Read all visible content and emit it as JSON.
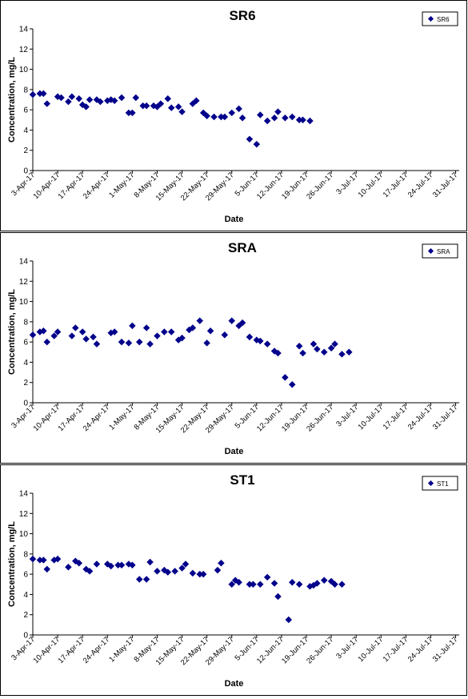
{
  "chart_data": [
    {
      "type": "scatter",
      "title": "SR6",
      "xlabel": "Date",
      "ylabel": "Concentration, mg/L",
      "ylim": [
        0,
        14
      ],
      "yticks": [
        0,
        2,
        4,
        6,
        8,
        10,
        12,
        14
      ],
      "xlim": [
        "2017-04-03",
        "2017-08-01"
      ],
      "xtick_dates": [
        "2017-04-03",
        "2017-04-10",
        "2017-04-17",
        "2017-04-24",
        "2017-05-01",
        "2017-05-08",
        "2017-05-15",
        "2017-05-22",
        "2017-05-29",
        "2017-06-05",
        "2017-06-12",
        "2017-06-19",
        "2017-06-26",
        "2017-07-03",
        "2017-07-10",
        "2017-07-17",
        "2017-07-24",
        "2017-07-31"
      ],
      "xtick_labels": [
        "3-Apr-17",
        "10-Apr-17",
        "17-Apr-17",
        "24-Apr-17",
        "1-May-17",
        "8-May-17",
        "15-May-17",
        "22-May-17",
        "29-May-17",
        "5-Jun-17",
        "12-Jun-17",
        "19-Jun-17",
        "26-Jun-17",
        "3-Jul-17",
        "10-Jul-17",
        "17-Jul-17",
        "24-Jul-17",
        "31-Jul-17"
      ],
      "grid": false,
      "legend": "top-right",
      "color": "#00008B",
      "series": [
        {
          "name": "SR6",
          "points": [
            [
              "2017-04-03",
              7.5
            ],
            [
              "2017-04-05",
              7.6
            ],
            [
              "2017-04-06",
              7.6
            ],
            [
              "2017-04-07",
              6.6
            ],
            [
              "2017-04-10",
              7.3
            ],
            [
              "2017-04-11",
              7.2
            ],
            [
              "2017-04-13",
              6.8
            ],
            [
              "2017-04-14",
              7.3
            ],
            [
              "2017-04-16",
              7.1
            ],
            [
              "2017-04-17",
              6.5
            ],
            [
              "2017-04-18",
              6.3
            ],
            [
              "2017-04-19",
              7.0
            ],
            [
              "2017-04-21",
              7.0
            ],
            [
              "2017-04-22",
              6.8
            ],
            [
              "2017-04-24",
              6.9
            ],
            [
              "2017-04-25",
              7.0
            ],
            [
              "2017-04-26",
              6.9
            ],
            [
              "2017-04-28",
              7.2
            ],
            [
              "2017-04-30",
              5.7
            ],
            [
              "2017-05-01",
              5.7
            ],
            [
              "2017-05-02",
              7.2
            ],
            [
              "2017-05-04",
              6.4
            ],
            [
              "2017-05-05",
              6.4
            ],
            [
              "2017-05-07",
              6.4
            ],
            [
              "2017-05-08",
              6.3
            ],
            [
              "2017-05-09",
              6.6
            ],
            [
              "2017-05-11",
              7.1
            ],
            [
              "2017-05-12",
              6.2
            ],
            [
              "2017-05-14",
              6.3
            ],
            [
              "2017-05-15",
              5.8
            ],
            [
              "2017-05-18",
              6.6
            ],
            [
              "2017-05-19",
              6.9
            ],
            [
              "2017-05-21",
              5.7
            ],
            [
              "2017-05-22",
              5.4
            ],
            [
              "2017-05-24",
              5.3
            ],
            [
              "2017-05-26",
              5.3
            ],
            [
              "2017-05-27",
              5.3
            ],
            [
              "2017-05-29",
              5.7
            ],
            [
              "2017-05-31",
              6.1
            ],
            [
              "2017-06-01",
              5.2
            ],
            [
              "2017-06-03",
              3.1
            ],
            [
              "2017-06-05",
              2.6
            ],
            [
              "2017-06-06",
              5.5
            ],
            [
              "2017-06-08",
              4.9
            ],
            [
              "2017-06-10",
              5.2
            ],
            [
              "2017-06-11",
              5.8
            ],
            [
              "2017-06-13",
              5.2
            ],
            [
              "2017-06-15",
              5.3
            ],
            [
              "2017-06-17",
              5.0
            ],
            [
              "2017-06-18",
              5.0
            ],
            [
              "2017-06-20",
              4.9
            ]
          ]
        }
      ]
    },
    {
      "type": "scatter",
      "title": "SRA",
      "xlabel": "Date",
      "ylabel": "Concentration, mg/L",
      "ylim": [
        0,
        14
      ],
      "yticks": [
        0,
        2,
        4,
        6,
        8,
        10,
        12,
        14
      ],
      "xlim": [
        "2017-04-03",
        "2017-08-01"
      ],
      "xtick_dates": [
        "2017-04-03",
        "2017-04-10",
        "2017-04-17",
        "2017-04-24",
        "2017-05-01",
        "2017-05-08",
        "2017-05-15",
        "2017-05-22",
        "2017-05-29",
        "2017-06-05",
        "2017-06-12",
        "2017-06-19",
        "2017-06-26",
        "2017-07-03",
        "2017-07-10",
        "2017-07-17",
        "2017-07-24",
        "2017-07-31"
      ],
      "xtick_labels": [
        "3-Apr-17",
        "10-Apr-17",
        "17-Apr-17",
        "24-Apr-17",
        "1-May-17",
        "8-May-17",
        "15-May-17",
        "22-May-17",
        "29-May-17",
        "5-Jun-17",
        "12-Jun-17",
        "19-Jun-17",
        "26-Jun-17",
        "3-Jul-17",
        "10-Jul-17",
        "17-Jul-17",
        "24-Jul-17",
        "31-Jul-17"
      ],
      "grid": false,
      "legend": "top-right",
      "color": "#00008B",
      "series": [
        {
          "name": "SRA",
          "points": [
            [
              "2017-04-03",
              6.7
            ],
            [
              "2017-04-05",
              7.0
            ],
            [
              "2017-04-06",
              7.1
            ],
            [
              "2017-04-07",
              6.0
            ],
            [
              "2017-04-09",
              6.6
            ],
            [
              "2017-04-10",
              7.0
            ],
            [
              "2017-04-14",
              6.6
            ],
            [
              "2017-04-15",
              7.4
            ],
            [
              "2017-04-17",
              7.0
            ],
            [
              "2017-04-18",
              6.3
            ],
            [
              "2017-04-20",
              6.5
            ],
            [
              "2017-04-21",
              5.8
            ],
            [
              "2017-04-25",
              6.9
            ],
            [
              "2017-04-26",
              7.0
            ],
            [
              "2017-04-28",
              6.0
            ],
            [
              "2017-04-30",
              5.9
            ],
            [
              "2017-05-01",
              7.6
            ],
            [
              "2017-05-03",
              6.0
            ],
            [
              "2017-05-05",
              7.4
            ],
            [
              "2017-05-06",
              5.8
            ],
            [
              "2017-05-08",
              6.6
            ],
            [
              "2017-05-10",
              7.0
            ],
            [
              "2017-05-12",
              7.0
            ],
            [
              "2017-05-14",
              6.2
            ],
            [
              "2017-05-15",
              6.4
            ],
            [
              "2017-05-17",
              7.2
            ],
            [
              "2017-05-18",
              7.4
            ],
            [
              "2017-05-20",
              8.1
            ],
            [
              "2017-05-22",
              5.9
            ],
            [
              "2017-05-23",
              7.1
            ],
            [
              "2017-05-27",
              6.7
            ],
            [
              "2017-05-29",
              8.1
            ],
            [
              "2017-05-31",
              7.6
            ],
            [
              "2017-06-01",
              7.9
            ],
            [
              "2017-06-03",
              6.5
            ],
            [
              "2017-06-05",
              6.2
            ],
            [
              "2017-06-06",
              6.1
            ],
            [
              "2017-06-08",
              5.8
            ],
            [
              "2017-06-10",
              5.1
            ],
            [
              "2017-06-11",
              4.9
            ],
            [
              "2017-06-13",
              2.5
            ],
            [
              "2017-06-15",
              1.8
            ],
            [
              "2017-06-17",
              5.6
            ],
            [
              "2017-06-18",
              4.9
            ],
            [
              "2017-06-21",
              5.8
            ],
            [
              "2017-06-22",
              5.3
            ],
            [
              "2017-06-24",
              5.0
            ],
            [
              "2017-06-26",
              5.4
            ],
            [
              "2017-06-27",
              5.8
            ],
            [
              "2017-06-29",
              4.8
            ],
            [
              "2017-07-01",
              5.0
            ]
          ]
        }
      ]
    },
    {
      "type": "scatter",
      "title": "ST1",
      "xlabel": "Date",
      "ylabel": "Concentration, mg/L",
      "ylim": [
        0,
        14
      ],
      "yticks": [
        0,
        2,
        4,
        6,
        8,
        10,
        12,
        14
      ],
      "xlim": [
        "2017-04-03",
        "2017-08-01"
      ],
      "xtick_dates": [
        "2017-04-03",
        "2017-04-10",
        "2017-04-17",
        "2017-04-24",
        "2017-05-01",
        "2017-05-08",
        "2017-05-15",
        "2017-05-22",
        "2017-05-29",
        "2017-06-05",
        "2017-06-12",
        "2017-06-19",
        "2017-06-26",
        "2017-07-03",
        "2017-07-10",
        "2017-07-17",
        "2017-07-24",
        "2017-07-31"
      ],
      "xtick_labels": [
        "3-Apr-17",
        "10-Apr-17",
        "17-Apr-17",
        "24-Apr-17",
        "1-May-17",
        "8-May-17",
        "15-May-17",
        "22-May-17",
        "29-May-17",
        "5-Jun-17",
        "12-Jun-17",
        "19-Jun-17",
        "26-Jun-17",
        "3-Jul-17",
        "10-Jul-17",
        "17-Jul-17",
        "24-Jul-17",
        "31-Jul-17"
      ],
      "grid": false,
      "legend": "top-right",
      "color": "#00008B",
      "series": [
        {
          "name": "ST1",
          "points": [
            [
              "2017-04-03",
              7.5
            ],
            [
              "2017-04-05",
              7.4
            ],
            [
              "2017-04-06",
              7.4
            ],
            [
              "2017-04-07",
              6.5
            ],
            [
              "2017-04-09",
              7.4
            ],
            [
              "2017-04-10",
              7.5
            ],
            [
              "2017-04-13",
              6.7
            ],
            [
              "2017-04-15",
              7.3
            ],
            [
              "2017-04-16",
              7.1
            ],
            [
              "2017-04-18",
              6.5
            ],
            [
              "2017-04-19",
              6.3
            ],
            [
              "2017-04-21",
              7.0
            ],
            [
              "2017-04-24",
              7.0
            ],
            [
              "2017-04-25",
              6.8
            ],
            [
              "2017-04-27",
              6.9
            ],
            [
              "2017-04-28",
              6.9
            ],
            [
              "2017-04-30",
              7.0
            ],
            [
              "2017-05-01",
              6.9
            ],
            [
              "2017-05-03",
              5.5
            ],
            [
              "2017-05-05",
              5.5
            ],
            [
              "2017-05-06",
              7.2
            ],
            [
              "2017-05-08",
              6.3
            ],
            [
              "2017-05-10",
              6.4
            ],
            [
              "2017-05-11",
              6.2
            ],
            [
              "2017-05-13",
              6.3
            ],
            [
              "2017-05-15",
              6.6
            ],
            [
              "2017-05-16",
              7.0
            ],
            [
              "2017-05-18",
              6.1
            ],
            [
              "2017-05-20",
              6.0
            ],
            [
              "2017-05-21",
              6.0
            ],
            [
              "2017-05-25",
              6.4
            ],
            [
              "2017-05-26",
              7.1
            ],
            [
              "2017-05-29",
              5.0
            ],
            [
              "2017-05-30",
              5.4
            ],
            [
              "2017-05-31",
              5.2
            ],
            [
              "2017-06-03",
              5.0
            ],
            [
              "2017-06-04",
              5.0
            ],
            [
              "2017-06-06",
              5.0
            ],
            [
              "2017-06-08",
              5.7
            ],
            [
              "2017-06-10",
              5.1
            ],
            [
              "2017-06-11",
              3.8
            ],
            [
              "2017-06-14",
              1.5
            ],
            [
              "2017-06-15",
              5.2
            ],
            [
              "2017-06-17",
              5.0
            ],
            [
              "2017-06-20",
              4.8
            ],
            [
              "2017-06-21",
              4.9
            ],
            [
              "2017-06-22",
              5.1
            ],
            [
              "2017-06-24",
              5.4
            ],
            [
              "2017-06-26",
              5.3
            ],
            [
              "2017-06-27",
              5.0
            ],
            [
              "2017-06-29",
              5.0
            ]
          ]
        }
      ]
    }
  ]
}
